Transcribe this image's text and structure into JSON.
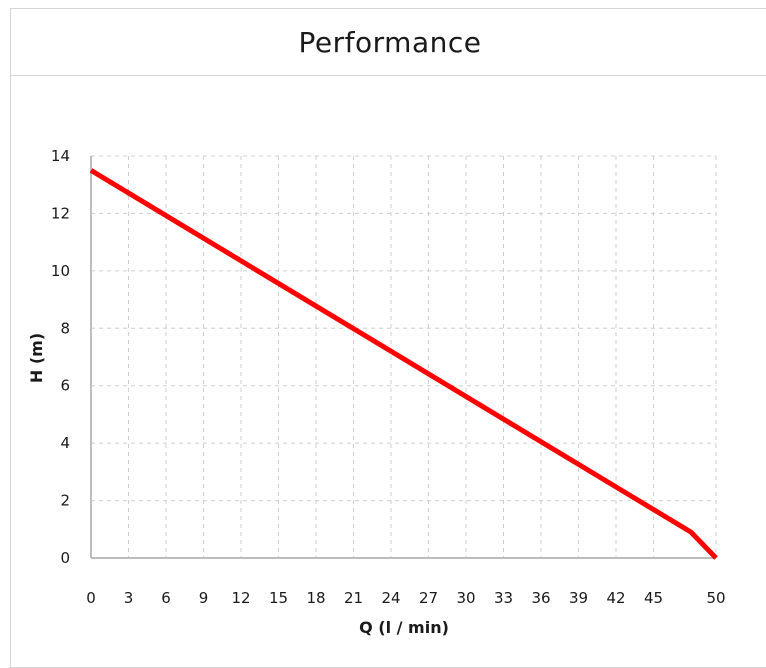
{
  "panel": {
    "title": "Performance"
  },
  "chart_data": {
    "type": "line",
    "title": "Performance",
    "xlabel": "Q (l / min)",
    "ylabel": "H (m)",
    "x_ticks": [
      0,
      3,
      6,
      9,
      12,
      15,
      18,
      21,
      24,
      27,
      30,
      33,
      36,
      39,
      42,
      45,
      50
    ],
    "y_ticks": [
      0,
      2,
      4,
      6,
      8,
      10,
      12,
      14
    ],
    "xlim": [
      0,
      50
    ],
    "ylim": [
      0,
      14
    ],
    "grid": true,
    "series": [
      {
        "color": "#ff0000",
        "x": [
          0,
          48,
          50
        ],
        "y": [
          13.5,
          0.9,
          0
        ]
      }
    ]
  }
}
